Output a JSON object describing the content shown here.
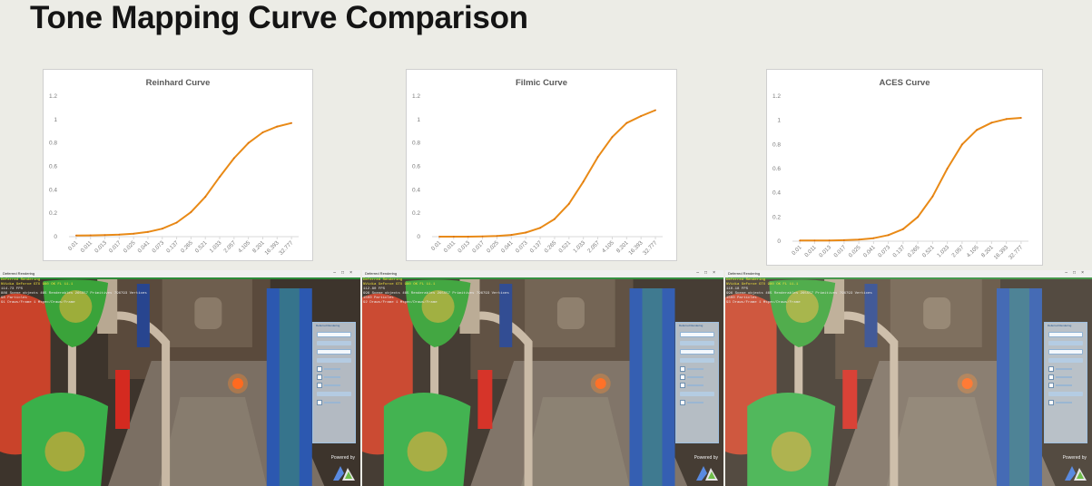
{
  "slide": {
    "title": "Tone Mapping Curve Comparison"
  },
  "colors": {
    "curve": "#e98a16",
    "axis": "#d9d9d9",
    "label": "#7a7a7a",
    "title": "#595959"
  },
  "chart_data": [
    {
      "type": "line",
      "title": "Reinhard Curve",
      "categories": [
        "0.01",
        "0.011",
        "0.013",
        "0.017",
        "0.025",
        "0.041",
        "0.073",
        "0.137",
        "0.265",
        "0.521",
        "1.033",
        "2.057",
        "4.105",
        "8.201",
        "16.393",
        "32.777"
      ],
      "ylim": [
        0,
        1.2
      ],
      "yticks": [
        "0",
        "0.2",
        "0.4",
        "0.6",
        "0.8",
        "1",
        "1.2"
      ],
      "series": [
        {
          "values": [
            0.01,
            0.011,
            0.013,
            0.017,
            0.025,
            0.04,
            0.068,
            0.12,
            0.21,
            0.34,
            0.51,
            0.67,
            0.8,
            0.89,
            0.94,
            0.97
          ]
        }
      ]
    },
    {
      "type": "line",
      "title": "Filmic Curve",
      "categories": [
        "0.01",
        "0.011",
        "0.013",
        "0.017",
        "0.025",
        "0.041",
        "0.073",
        "0.137",
        "0.265",
        "0.521",
        "1.033",
        "2.057",
        "4.105",
        "8.201",
        "16.393",
        "32.777"
      ],
      "ylim": [
        0,
        1.2
      ],
      "yticks": [
        "0",
        "0.2",
        "0.4",
        "0.6",
        "0.8",
        "1",
        "1.2"
      ],
      "series": [
        {
          "values": [
            0.0,
            0.0,
            0.0,
            0.002,
            0.006,
            0.015,
            0.035,
            0.075,
            0.15,
            0.28,
            0.47,
            0.68,
            0.85,
            0.97,
            1.03,
            1.08
          ]
        }
      ]
    },
    {
      "type": "line",
      "title": "ACES Curve",
      "categories": [
        "0.01",
        "0.011",
        "0.013",
        "0.017",
        "0.025",
        "0.041",
        "0.073",
        "0.137",
        "0.265",
        "0.521",
        "1.033",
        "2.057",
        "4.105",
        "8.201",
        "16.393",
        "32.777"
      ],
      "ylim": [
        0,
        1.2
      ],
      "yticks": [
        "0",
        "0.2",
        "0.4",
        "0.6",
        "0.8",
        "1",
        "1.2"
      ],
      "series": [
        {
          "values": [
            0.005,
            0.005,
            0.006,
            0.008,
            0.013,
            0.025,
            0.05,
            0.1,
            0.2,
            0.37,
            0.6,
            0.8,
            0.92,
            0.98,
            1.01,
            1.02
          ]
        }
      ]
    }
  ],
  "screenshots": [
    {
      "window_title": "Deferred Rendering",
      "overlay_lines": [
        "Deferred Rendering",
        "NVidia GeForce GTX 980 OK FL 11.1",
        "114.73 FPS",
        "886 Scene objects 465 Renderables 265557 Primitives 796793 Vertices",
        "98 Particles",
        "91 Draws/Frame 1 Mspec/Draws/Frame"
      ],
      "panel_caption": "Deferred Rendering",
      "powered_by": "Powered by"
    },
    {
      "window_title": "Deferred Rendering",
      "overlay_lines": [
        "Deferred Rendering",
        "NVidia GeForce GTX 980 OK FL 11.1",
        "112.80 FPS",
        "996 Scene objects 465 Renderables 265557 Primitives 796793 Vertices",
        "1500 Particles",
        "92 Draws/Frame 1 Mspec/Draws/Frame"
      ],
      "panel_caption": "Deferred Rendering",
      "powered_by": "Powered by"
    },
    {
      "window_title": "Deferred Rendering",
      "overlay_lines": [
        "Deferred Rendering",
        "NVidia GeForce GTX 980 OK FL 11.1",
        "110.18 FPS",
        "996 Scene objects 465 Renderables 265557 Primitives 796793 Vertices",
        "1500 Particles",
        "93 Draws/Frame 1 Mspec/Draws/Frame"
      ],
      "panel_caption": "Deferred Rendering",
      "powered_by": "Powered by"
    }
  ]
}
